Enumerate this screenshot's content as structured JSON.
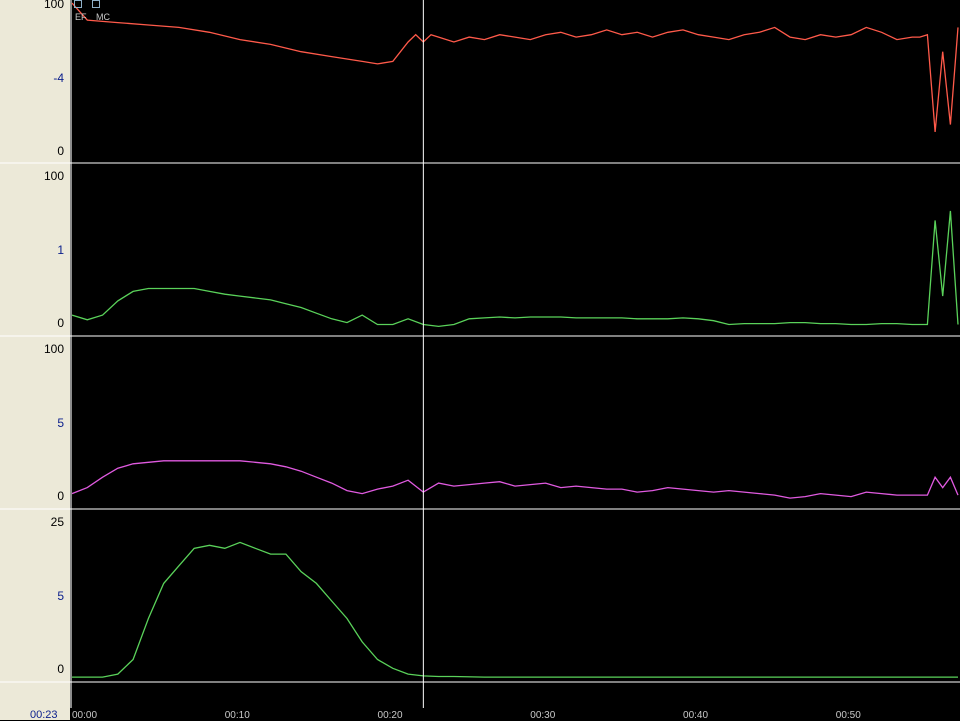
{
  "legend": {
    "items": [
      {
        "label": "EF"
      },
      {
        "label": "MC"
      }
    ]
  },
  "time_readout": "00:23",
  "xaxis": {
    "tick_labels": [
      "00:00",
      "00:10",
      "00:20",
      "00:30",
      "00:40",
      "00:50"
    ]
  },
  "colors": {
    "background": "#000000",
    "panel_bg": "#ece9d8",
    "gridline": "#ffffff",
    "cursor": "#ffffff",
    "red": "#ff5a4a",
    "green": "#5ad25a",
    "magenta": "#e05ae0",
    "tick_blue": "#0a1e8c"
  },
  "cursor_x": 23,
  "chart_data": [
    {
      "type": "line",
      "series": [
        {
          "color": "#ff5a4a",
          "x": [
            0,
            1,
            3,
            5,
            7,
            9,
            11,
            13,
            15,
            17,
            19,
            20,
            21,
            22,
            22.5,
            23,
            23.5,
            24,
            25,
            26,
            27,
            28,
            29,
            30,
            31,
            32,
            33,
            34,
            35,
            36,
            37,
            38,
            39,
            40,
            41,
            42,
            43,
            44,
            45,
            46,
            47,
            48,
            49,
            50,
            51,
            52,
            53,
            54,
            55,
            55.5,
            56,
            56.5,
            57,
            57.5,
            58
          ],
          "y": [
            1,
            0.3,
            0.2,
            0.1,
            0,
            -0.2,
            -0.5,
            -0.7,
            -1.0,
            -1.2,
            -1.4,
            -1.5,
            -1.4,
            -0.6,
            -0.3,
            -0.6,
            -0.3,
            -0.4,
            -0.6,
            -0.4,
            -0.5,
            -0.3,
            -0.4,
            -0.5,
            -0.3,
            -0.2,
            -0.4,
            -0.3,
            -0.1,
            -0.3,
            -0.2,
            -0.4,
            -0.2,
            -0.1,
            -0.3,
            -0.4,
            -0.5,
            -0.3,
            -0.2,
            0,
            -0.4,
            -0.5,
            -0.3,
            -0.4,
            -0.3,
            0,
            -0.2,
            -0.5,
            -0.4,
            -0.4,
            -0.3,
            -4.3,
            -1,
            -4,
            0
          ]
        }
      ],
      "ylim": [
        -5.5,
        0.8
      ],
      "ticks": [
        "100",
        "-4",
        "0"
      ]
    },
    {
      "type": "line",
      "series": [
        {
          "color": "#5ad25a",
          "x": [
            0,
            1,
            2,
            3,
            4,
            5,
            6,
            7,
            8,
            9,
            10,
            11,
            12,
            13,
            14,
            15,
            16,
            17,
            18,
            19,
            20,
            21,
            22,
            23,
            24,
            25,
            26,
            27,
            28,
            29,
            30,
            31,
            32,
            33,
            34,
            35,
            36,
            37,
            38,
            39,
            40,
            41,
            42,
            43,
            44,
            45,
            46,
            47,
            48,
            49,
            50,
            51,
            52,
            53,
            54,
            55,
            55.5,
            56,
            56.5,
            57,
            57.5,
            58
          ],
          "y": [
            0.1,
            0.05,
            0.1,
            0.25,
            0.35,
            0.38,
            0.38,
            0.38,
            0.38,
            0.35,
            0.32,
            0.3,
            0.28,
            0.26,
            0.22,
            0.18,
            0.12,
            0.06,
            0.02,
            0.1,
            0.0,
            0.0,
            0.06,
            0.0,
            -0.02,
            0.0,
            0.06,
            0.07,
            0.08,
            0.07,
            0.08,
            0.08,
            0.08,
            0.07,
            0.07,
            0.07,
            0.07,
            0.06,
            0.06,
            0.06,
            0.07,
            0.06,
            0.04,
            0.0,
            0.01,
            0.01,
            0.01,
            0.02,
            0.02,
            0.01,
            0.01,
            0.0,
            0.0,
            0.01,
            0.01,
            0.0,
            0.0,
            0.0,
            1.1,
            0.3,
            1.2,
            0.0
          ]
        }
      ],
      "ylim": [
        -0.1,
        1.6
      ],
      "ticks": [
        "100",
        "1",
        "0"
      ]
    },
    {
      "type": "line",
      "series": [
        {
          "color": "#e05ae0",
          "x": [
            0,
            1,
            2,
            3,
            4,
            5,
            6,
            7,
            8,
            9,
            10,
            11,
            12,
            13,
            14,
            15,
            16,
            17,
            18,
            19,
            20,
            21,
            22,
            23,
            24,
            25,
            26,
            27,
            28,
            29,
            30,
            31,
            32,
            33,
            34,
            35,
            36,
            37,
            38,
            39,
            40,
            41,
            42,
            43,
            44,
            45,
            46,
            47,
            48,
            49,
            50,
            51,
            52,
            53,
            54,
            55,
            55.5,
            56,
            56.5,
            57,
            57.5,
            58
          ],
          "y": [
            0.1,
            0.5,
            1.2,
            1.8,
            2.1,
            2.2,
            2.3,
            2.3,
            2.3,
            2.3,
            2.3,
            2.3,
            2.2,
            2.1,
            1.9,
            1.6,
            1.2,
            0.8,
            0.3,
            0.1,
            0.4,
            0.6,
            1.0,
            0.2,
            0.8,
            0.6,
            0.7,
            0.8,
            0.9,
            0.6,
            0.7,
            0.8,
            0.5,
            0.6,
            0.5,
            0.4,
            0.4,
            0.2,
            0.3,
            0.5,
            0.4,
            0.3,
            0.2,
            0.3,
            0.2,
            0.1,
            0.0,
            -0.2,
            -0.1,
            0.1,
            0.0,
            -0.1,
            0.2,
            0.1,
            0.0,
            0.0,
            0.0,
            0.0,
            1.2,
            0.5,
            1.2,
            0.0
          ]
        }
      ],
      "ylim": [
        -0.8,
        10
      ],
      "ticks": [
        "100",
        "5",
        "0"
      ]
    },
    {
      "type": "line",
      "series": [
        {
          "color": "#5ad25a",
          "x": [
            0,
            2,
            3,
            4,
            5,
            6,
            7,
            8,
            9,
            10,
            11,
            12,
            13,
            14,
            15,
            16,
            17,
            18,
            19,
            20,
            21,
            22,
            23,
            24,
            25,
            27,
            29,
            31,
            35,
            40,
            45,
            50,
            55,
            58
          ],
          "y": [
            0,
            0,
            0.5,
            3,
            10,
            16,
            19,
            22,
            22.5,
            22,
            23,
            22,
            21,
            21,
            18,
            16,
            13,
            10,
            6,
            3,
            1.5,
            0.5,
            0.2,
            0.1,
            0.1,
            0,
            0,
            0,
            0,
            0,
            0,
            0,
            0,
            0
          ]
        }
      ],
      "ylim": [
        -0.5,
        27
      ],
      "ticks": [
        "25",
        "5",
        "0"
      ]
    }
  ]
}
